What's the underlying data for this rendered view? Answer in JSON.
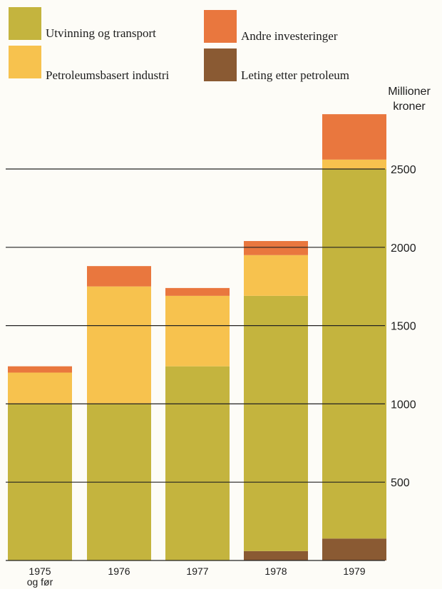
{
  "chart_data": {
    "type": "bar",
    "stacked": true,
    "categories": [
      "1975 og før",
      "1976",
      "1977",
      "1978",
      "1979"
    ],
    "category_lines": [
      [
        "1975",
        "og før"
      ],
      [
        "1976"
      ],
      [
        "1977"
      ],
      [
        "1978"
      ],
      [
        "1979"
      ]
    ],
    "series": [
      {
        "name": "Leting etter petroleum",
        "color": "#8a5a33",
        "values": [
          0,
          0,
          0,
          60,
          140
        ]
      },
      {
        "name": "Utvinning og transport",
        "color": "#c4b43e",
        "values": [
          1000,
          1000,
          1240,
          1630,
          2360
        ]
      },
      {
        "name": "Petroleumsbasert industri",
        "color": "#f7c24e",
        "values": [
          200,
          750,
          450,
          260,
          60
        ]
      },
      {
        "name": "Andre investeringer",
        "color": "#e9773e",
        "values": [
          40,
          130,
          50,
          90,
          290
        ]
      }
    ],
    "ylabel": [
      "Millioner",
      "kroner"
    ],
    "yticks": [
      500,
      1000,
      1500,
      2000,
      2500
    ],
    "ylim": [
      0,
      3000
    ],
    "grid": true,
    "legend_position": "top",
    "axis_position": "right"
  }
}
